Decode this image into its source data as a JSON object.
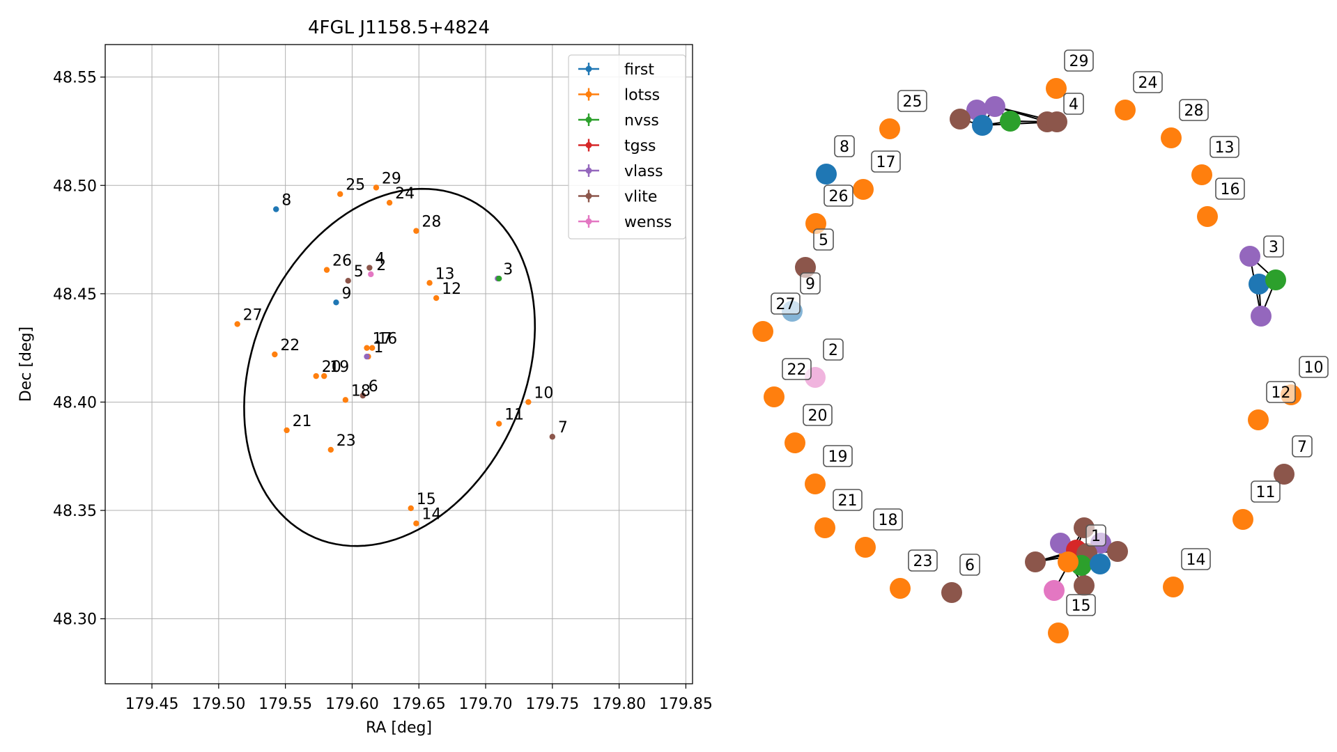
{
  "chart_data": [
    {
      "type": "scatter",
      "title": "4FGL J1158.5+4824",
      "xlabel": "RA [deg]",
      "ylabel": "Dec [deg]",
      "xlim": [
        179.415,
        179.855
      ],
      "ylim": [
        48.27,
        48.565
      ],
      "xticks": [
        179.45,
        179.5,
        179.55,
        179.6,
        179.65,
        179.7,
        179.75,
        179.8,
        179.85
      ],
      "xtick_labels": [
        "179.45",
        "179.50",
        "179.55",
        "179.60",
        "179.65",
        "179.70",
        "179.75",
        "179.80",
        "179.85"
      ],
      "yticks": [
        48.3,
        48.35,
        48.4,
        48.45,
        48.5,
        48.55
      ],
      "ytick_labels": [
        "48.30",
        "48.35",
        "48.40",
        "48.45",
        "48.50",
        "48.55"
      ],
      "grid": true,
      "legend_position": "top-right",
      "legend": [
        {
          "name": "first",
          "color": "#1f77b4"
        },
        {
          "name": "lotss",
          "color": "#ff7f0e"
        },
        {
          "name": "nvss",
          "color": "#2ca02c"
        },
        {
          "name": "tgss",
          "color": "#d62728"
        },
        {
          "name": "vlass",
          "color": "#9467bd"
        },
        {
          "name": "vlite",
          "color": "#8c564b"
        },
        {
          "name": "wenss",
          "color": "#e377c2"
        }
      ],
      "ellipse": {
        "center": [
          179.628,
          48.416
        ],
        "ra_semi": 0.127,
        "dec_semi": 0.084,
        "angle_deg": 38
      },
      "points": [
        {
          "label": "1",
          "survey": "lotss",
          "ra": 179.612,
          "dec": 48.421
        },
        {
          "label": "",
          "survey": "vlass",
          "ra": 179.611,
          "dec": 48.421
        },
        {
          "label": "2",
          "survey": "wenss",
          "ra": 179.614,
          "dec": 48.459
        },
        {
          "label": "3",
          "survey": "vlass",
          "ra": 179.709,
          "dec": 48.457
        },
        {
          "label": "",
          "survey": "nvss",
          "ra": 179.71,
          "dec": 48.457
        },
        {
          "label": "4",
          "survey": "vlite",
          "ra": 179.613,
          "dec": 48.462
        },
        {
          "label": "5",
          "survey": "vlite",
          "ra": 179.597,
          "dec": 48.456
        },
        {
          "label": "6",
          "survey": "vlite",
          "ra": 179.608,
          "dec": 48.403
        },
        {
          "label": "7",
          "survey": "vlite",
          "ra": 179.75,
          "dec": 48.384
        },
        {
          "label": "8",
          "survey": "first",
          "ra": 179.543,
          "dec": 48.489
        },
        {
          "label": "9",
          "survey": "first",
          "ra": 179.588,
          "dec": 48.446
        },
        {
          "label": "10",
          "survey": "lotss",
          "ra": 179.732,
          "dec": 48.4
        },
        {
          "label": "11",
          "survey": "lotss",
          "ra": 179.71,
          "dec": 48.39
        },
        {
          "label": "12",
          "survey": "lotss",
          "ra": 179.663,
          "dec": 48.448
        },
        {
          "label": "13",
          "survey": "lotss",
          "ra": 179.658,
          "dec": 48.455
        },
        {
          "label": "14",
          "survey": "lotss",
          "ra": 179.648,
          "dec": 48.344
        },
        {
          "label": "15",
          "survey": "lotss",
          "ra": 179.644,
          "dec": 48.351
        },
        {
          "label": "16",
          "survey": "lotss",
          "ra": 179.615,
          "dec": 48.425
        },
        {
          "label": "17",
          "survey": "lotss",
          "ra": 179.611,
          "dec": 48.425
        },
        {
          "label": "18",
          "survey": "lotss",
          "ra": 179.595,
          "dec": 48.401
        },
        {
          "label": "19",
          "survey": "lotss",
          "ra": 179.579,
          "dec": 48.412
        },
        {
          "label": "20",
          "survey": "lotss",
          "ra": 179.573,
          "dec": 48.412
        },
        {
          "label": "21",
          "survey": "lotss",
          "ra": 179.551,
          "dec": 48.387
        },
        {
          "label": "22",
          "survey": "lotss",
          "ra": 179.542,
          "dec": 48.422
        },
        {
          "label": "23",
          "survey": "lotss",
          "ra": 179.584,
          "dec": 48.378
        },
        {
          "label": "24",
          "survey": "lotss",
          "ra": 179.628,
          "dec": 48.492
        },
        {
          "label": "25",
          "survey": "lotss",
          "ra": 179.591,
          "dec": 48.496
        },
        {
          "label": "26",
          "survey": "lotss",
          "ra": 179.581,
          "dec": 48.461
        },
        {
          "label": "27",
          "survey": "lotss",
          "ra": 179.514,
          "dec": 48.436
        },
        {
          "label": "28",
          "survey": "lotss",
          "ra": 179.648,
          "dec": 48.479
        },
        {
          "label": "29",
          "survey": "lotss",
          "ra": 179.618,
          "dec": 48.499
        }
      ]
    },
    {
      "type": "network",
      "labeled_nodes": [
        {
          "label": "1",
          "survey": "lotss"
        },
        {
          "label": "2",
          "survey": "wenss"
        },
        {
          "label": "3",
          "survey": "vlass"
        },
        {
          "label": "4",
          "survey": "vlite"
        },
        {
          "label": "5",
          "survey": "vlite"
        },
        {
          "label": "6",
          "survey": "vlite"
        },
        {
          "label": "7",
          "survey": "vlite"
        },
        {
          "label": "8",
          "survey": "first"
        },
        {
          "label": "9",
          "survey": "first"
        },
        {
          "label": "10",
          "survey": "lotss"
        },
        {
          "label": "11",
          "survey": "lotss"
        },
        {
          "label": "12",
          "survey": "lotss"
        },
        {
          "label": "13",
          "survey": "lotss"
        },
        {
          "label": "14",
          "survey": "lotss"
        },
        {
          "label": "15",
          "survey": "lotss"
        },
        {
          "label": "16",
          "survey": "lotss"
        },
        {
          "label": "17",
          "survey": "lotss"
        },
        {
          "label": "18",
          "survey": "lotss"
        },
        {
          "label": "19",
          "survey": "lotss"
        },
        {
          "label": "20",
          "survey": "lotss"
        },
        {
          "label": "21",
          "survey": "lotss"
        },
        {
          "label": "22",
          "survey": "lotss"
        },
        {
          "label": "23",
          "survey": "lotss"
        },
        {
          "label": "24",
          "survey": "lotss"
        },
        {
          "label": "25",
          "survey": "lotss"
        },
        {
          "label": "26",
          "survey": "lotss"
        },
        {
          "label": "27",
          "survey": "lotss"
        },
        {
          "label": "28",
          "survey": "lotss"
        },
        {
          "label": "29",
          "survey": "lotss"
        }
      ],
      "clusters": [
        {
          "label": "1",
          "members": [
            "lotss",
            "vlass",
            "vlass",
            "tgss",
            "vlite",
            "vlite",
            "vlite",
            "vlite",
            "vlite",
            "nvss",
            "first",
            "wenss",
            "lotss"
          ]
        },
        {
          "label": "3",
          "members": [
            "vlass",
            "vlass",
            "first",
            "nvss"
          ]
        },
        {
          "label": "4",
          "members": [
            "vlite",
            "vlass",
            "vlass",
            "first",
            "nvss",
            "vlite",
            "vlite"
          ]
        }
      ]
    }
  ]
}
